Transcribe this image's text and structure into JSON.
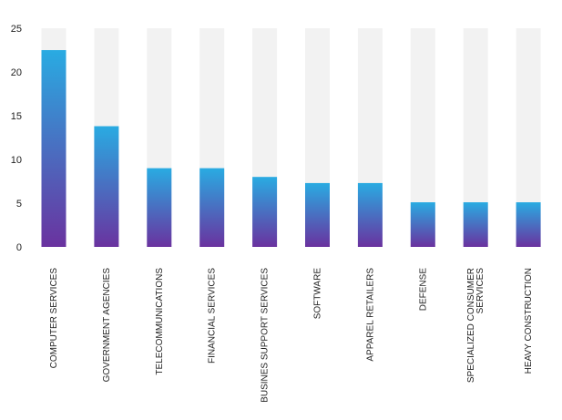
{
  "chart_data": {
    "type": "bar",
    "title": "",
    "xlabel": "",
    "ylabel": "",
    "ylim": [
      0,
      25
    ],
    "yticks": [
      0,
      5,
      10,
      15,
      20,
      25
    ],
    "grid": false,
    "legend": "none",
    "categories": [
      [
        "COMPUTER SERVICES"
      ],
      [
        "GOVERNMENT AGENCIES"
      ],
      [
        "TELECOMMUNICATIONS"
      ],
      [
        "FINANCIAL SERVICES"
      ],
      [
        "BUSINES SUPPORT SERVICES"
      ],
      [
        "SOFTWARE"
      ],
      [
        "APPAREL RETAILERS"
      ],
      [
        "DEFENSE"
      ],
      [
        "SPECIALIZED CONSUMER",
        "SERVICES"
      ],
      [
        "HEAVY CONSTRUCTION"
      ]
    ],
    "values": [
      22.5,
      13.8,
      9.0,
      9.0,
      8.0,
      7.3,
      7.3,
      5.1,
      5.1,
      5.1
    ],
    "colors": {
      "background_bar": "#f2f2f2",
      "gradient_top": "#29abe2",
      "gradient_bottom": "#6a329f",
      "text": "#222222"
    }
  }
}
